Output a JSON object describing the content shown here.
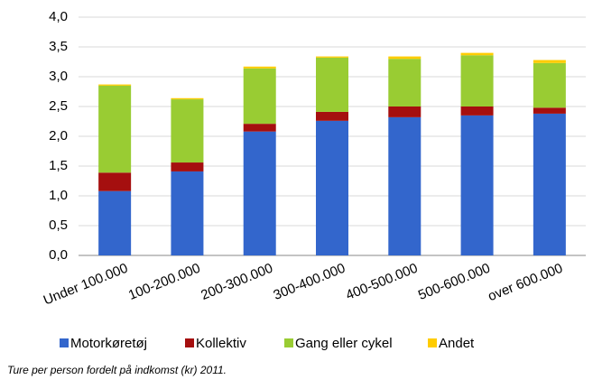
{
  "chart_data": {
    "type": "stacked_bar",
    "caption": "Ture per person fordelt på indkomst (kr) 2011.",
    "categories": [
      "Under 100.000",
      "100-200.000",
      "200-300.000",
      "300-400.000",
      "400-500.000",
      "500-600.000",
      "over 600.000"
    ],
    "series": [
      {
        "name": "Motorkøretøj",
        "color": "#3366cc",
        "values": [
          1.08,
          1.41,
          2.08,
          2.26,
          2.32,
          2.35,
          2.38
        ]
      },
      {
        "name": "Kollektiv",
        "color": "#a50f0f",
        "values": [
          0.31,
          0.15,
          0.13,
          0.15,
          0.18,
          0.15,
          0.1
        ]
      },
      {
        "name": "Gang eller cykel",
        "color": "#99cc33",
        "values": [
          1.46,
          1.06,
          0.93,
          0.91,
          0.8,
          0.86,
          0.75
        ]
      },
      {
        "name": "Andet",
        "color": "#ffcc00",
        "values": [
          0.02,
          0.02,
          0.03,
          0.02,
          0.04,
          0.04,
          0.05
        ]
      }
    ],
    "ylim": [
      0,
      4
    ],
    "yticks": [
      {
        "value": 0,
        "label": "0,0"
      },
      {
        "value": 0.5,
        "label": "0,5"
      },
      {
        "value": 1,
        "label": "1,0"
      },
      {
        "value": 1.5,
        "label": "1,5"
      },
      {
        "value": 2,
        "label": "2,0"
      },
      {
        "value": 2.5,
        "label": "2,5"
      },
      {
        "value": 3,
        "label": "3,0"
      },
      {
        "value": 3.5,
        "label": "3,5"
      },
      {
        "value": 4,
        "label": "4,0"
      }
    ],
    "grid": true,
    "legend": "bottom"
  }
}
